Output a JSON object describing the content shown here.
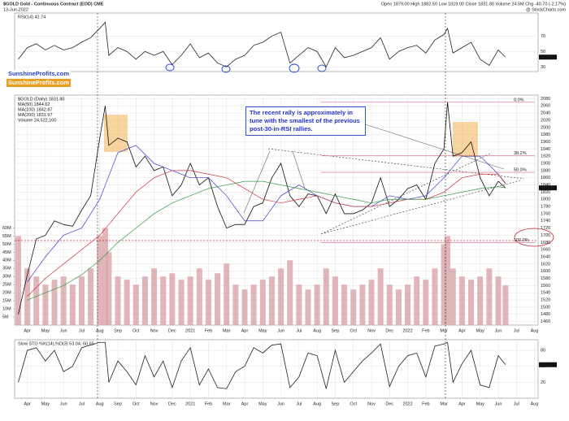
{
  "watermark": [
    "SunshineProfits.com",
    "SunshineProfits.com"
  ],
  "chart_data": [
    {
      "type": "line",
      "x": [
        -0.5,
        0,
        0.5,
        1,
        1.5,
        2,
        2.5,
        3,
        3.5,
        4,
        4.3,
        4.5,
        5,
        5.5,
        6,
        6.5,
        7,
        7.5,
        8,
        8.5,
        9,
        9.5,
        10,
        10.5,
        11,
        11.5,
        12,
        12.5,
        13,
        13.5,
        14,
        14.5,
        15,
        15.5,
        16,
        16.5,
        17,
        17.5,
        18,
        18.5,
        19,
        19.5,
        20,
        20.5,
        21,
        21.5,
        22,
        22.5,
        23,
        23.2,
        23.5,
        24,
        24.5,
        25,
        25.5,
        26,
        26.4
      ],
      "series": [
        {
          "name": "RSI(14) 42.74",
          "color": "#222222",
          "values": [
            40,
            55,
            60,
            52,
            58,
            52,
            55,
            62,
            68,
            80,
            88,
            45,
            55,
            50,
            40,
            50,
            45,
            50,
            33,
            45,
            60,
            42,
            48,
            35,
            30,
            40,
            45,
            58,
            62,
            70,
            75,
            35,
            45,
            55,
            50,
            30,
            55,
            42,
            45,
            50,
            55,
            68,
            40,
            50,
            55,
            58,
            48,
            65,
            72,
            80,
            48,
            55,
            62,
            40,
            32,
            52,
            42.74
          ]
        }
      ],
      "xlim": [
        -0.7,
        28.2
      ],
      "ylim": [
        24,
        100
      ],
      "yticks": [
        30,
        50,
        70
      ],
      "grid": true
    },
    {
      "type": "line",
      "title": "$GOLD Gold - Continuous Contract (EOD) CME",
      "subtitle": "13-Jun-2022",
      "source": "@ StockCharts.com",
      "quote": "Open 1879.00  High 1882.50  Low 1819.00  Close 1831.80  Volume 24.5M  Chg -40.70 (-2.17%)",
      "annotation": "The recent rally is approximately in tune with the smallest of the previous post-30-in-RSI rallies.",
      "fib_levels": [
        {
          "value": 2070,
          "label": "0.0%"
        },
        {
          "value": 1921,
          "label": "38.2%"
        },
        {
          "value": 1875,
          "label": "50.0%"
        },
        {
          "value": 1680,
          "label": "100.0%"
        }
      ],
      "x": [
        -0.5,
        0,
        0.5,
        1,
        1.5,
        2,
        2.5,
        3,
        3.5,
        4,
        4.3,
        4.5,
        5,
        5.5,
        6,
        6.5,
        7,
        7.5,
        8,
        8.5,
        9,
        9.5,
        10,
        10.5,
        11,
        11.5,
        12,
        12.5,
        13,
        13.5,
        14,
        14.5,
        15,
        15.5,
        16,
        16.5,
        17,
        17.5,
        18,
        18.5,
        19,
        19.5,
        20,
        20.5,
        21,
        21.5,
        22,
        22.5,
        23,
        23.2,
        23.5,
        24,
        24.5,
        25,
        25.5,
        26,
        26.4
      ],
      "series": [
        {
          "name": "$GOLD (Daily) 1831.80",
          "color": "#111111",
          "values": [
            1480,
            1590,
            1690,
            1700,
            1740,
            1730,
            1725,
            1770,
            1810,
            1970,
            2060,
            1950,
            1970,
            1960,
            1890,
            1920,
            1880,
            1890,
            1810,
            1840,
            1900,
            1840,
            1860,
            1780,
            1720,
            1730,
            1730,
            1780,
            1790,
            1860,
            1900,
            1810,
            1780,
            1815,
            1810,
            1760,
            1815,
            1760,
            1760,
            1770,
            1790,
            1860,
            1780,
            1800,
            1830,
            1840,
            1800,
            1900,
            1940,
            2070,
            1920,
            1930,
            1960,
            1860,
            1810,
            1850,
            1831.8
          ]
        },
        {
          "name": "MA(50) 1844.62",
          "color": "#3a3acc",
          "x": [
            0,
            1,
            2,
            3,
            4,
            5,
            6,
            7,
            8,
            9,
            10,
            11,
            12,
            13,
            14,
            15,
            16,
            17,
            18,
            19,
            20,
            21,
            22,
            23,
            24,
            25,
            26,
            26.4
          ],
          "values": [
            1570,
            1640,
            1700,
            1720,
            1800,
            1930,
            1950,
            1900,
            1880,
            1860,
            1860,
            1810,
            1740,
            1740,
            1810,
            1840,
            1810,
            1790,
            1780,
            1780,
            1810,
            1800,
            1810,
            1860,
            1920,
            1920,
            1870,
            1844.62
          ]
        },
        {
          "name": "MA(100) 1842.87",
          "color": "#cc3344",
          "x": [
            0,
            1,
            2,
            3,
            4,
            5,
            6,
            7,
            8,
            9,
            10,
            11,
            12,
            13,
            14,
            15,
            16,
            17,
            18,
            19,
            20,
            21,
            22,
            23,
            24,
            25,
            26,
            26.4
          ],
          "values": [
            1530,
            1580,
            1620,
            1660,
            1700,
            1760,
            1820,
            1860,
            1880,
            1880,
            1870,
            1860,
            1830,
            1800,
            1790,
            1800,
            1810,
            1790,
            1780,
            1780,
            1790,
            1800,
            1800,
            1820,
            1860,
            1870,
            1870,
            1842.87
          ]
        },
        {
          "name": "MA(200) 1831.97",
          "color": "#339944",
          "x": [
            0,
            1,
            2,
            3,
            4,
            5,
            6,
            7,
            8,
            9,
            10,
            11,
            12,
            13,
            14,
            15,
            16,
            17,
            18,
            19,
            20,
            21,
            22,
            23,
            24,
            25,
            26,
            26.4
          ],
          "values": [
            1520,
            1540,
            1560,
            1590,
            1630,
            1680,
            1720,
            1760,
            1790,
            1810,
            1830,
            1840,
            1850,
            1850,
            1840,
            1830,
            1820,
            1810,
            1800,
            1790,
            1800,
            1800,
            1800,
            1810,
            1820,
            1830,
            1835,
            1831.97
          ]
        },
        {
          "name": "Volume 24,522,100",
          "color": "#d8a4a8",
          "axis": "y2",
          "values": [
            55000000,
            35000000,
            30000000,
            25000000,
            28000000,
            30000000,
            25000000,
            30000000,
            35000000,
            55000000,
            60000000,
            45000000,
            30000000,
            28000000,
            25000000,
            30000000,
            35000000,
            30000000,
            32000000,
            28000000,
            30000000,
            35000000,
            28000000,
            32000000,
            38000000,
            25000000,
            22000000,
            25000000,
            28000000,
            30000000,
            35000000,
            40000000,
            25000000,
            22000000,
            25000000,
            35000000,
            30000000,
            25000000,
            22000000,
            25000000,
            28000000,
            35000000,
            25000000,
            22000000,
            25000000,
            30000000,
            28000000,
            35000000,
            50000000,
            55000000,
            35000000,
            30000000,
            28000000,
            30000000,
            35000000,
            30000000,
            24522100
          ]
        }
      ],
      "xlim": [
        -0.7,
        28.2
      ],
      "ylim": [
        1450,
        2090
      ],
      "yticks": [
        1460,
        1480,
        1500,
        1520,
        1540,
        1560,
        1580,
        1600,
        1620,
        1640,
        1660,
        1680,
        1700,
        1720,
        1740,
        1760,
        1780,
        1800,
        1820,
        1840,
        1860,
        1880,
        1900,
        1920,
        1940,
        1960,
        1980,
        2000,
        2020,
        2040,
        2060,
        2080
      ],
      "y2lim": [
        0,
        142000000
      ],
      "y2ticks": [
        {
          "value": 5000000,
          "label": "5M"
        },
        {
          "value": 10000000,
          "label": "10M"
        },
        {
          "value": 15000000,
          "label": "15M"
        },
        {
          "value": 20000000,
          "label": "20M"
        },
        {
          "value": 25000000,
          "label": "25M"
        },
        {
          "value": 30000000,
          "label": "30M"
        },
        {
          "value": 35000000,
          "label": "35M"
        },
        {
          "value": 40000000,
          "label": "40M"
        },
        {
          "value": 45000000,
          "label": "45M"
        },
        {
          "value": 50000000,
          "label": "50M"
        },
        {
          "value": 55000000,
          "label": "55M"
        },
        {
          "value": 60000000,
          "label": "60M"
        }
      ],
      "xticks": [
        {
          "value": 0,
          "label": "Apr"
        },
        {
          "value": 1,
          "label": "May"
        },
        {
          "value": 2,
          "label": "Jun"
        },
        {
          "value": 3,
          "label": "Jul"
        },
        {
          "value": 4,
          "label": "Aug"
        },
        {
          "value": 5,
          "label": "Sep"
        },
        {
          "value": 6,
          "label": "Oct"
        },
        {
          "value": 7,
          "label": "Nov"
        },
        {
          "value": 8,
          "label": "Dec"
        },
        {
          "value": 9,
          "label": "2021"
        },
        {
          "value": 10,
          "label": "Feb"
        },
        {
          "value": 11,
          "label": "Mar"
        },
        {
          "value": 12,
          "label": "Apr"
        },
        {
          "value": 13,
          "label": "May"
        },
        {
          "value": 14,
          "label": "Jun"
        },
        {
          "value": 15,
          "label": "Jul"
        },
        {
          "value": 16,
          "label": "Aug"
        },
        {
          "value": 17,
          "label": "Sep"
        },
        {
          "value": 18,
          "label": "Oct"
        },
        {
          "value": 19,
          "label": "Nov"
        },
        {
          "value": 20,
          "label": "Dec"
        },
        {
          "value": 21,
          "label": "2022"
        },
        {
          "value": 22,
          "label": "Feb"
        },
        {
          "value": 23,
          "label": "Mar"
        },
        {
          "value": 24,
          "label": "Apr"
        },
        {
          "value": 25,
          "label": "May"
        },
        {
          "value": 26,
          "label": "Jun"
        },
        {
          "value": 27,
          "label": "Jul"
        },
        {
          "value": 28,
          "label": "Aug"
        }
      ],
      "grid": true
    },
    {
      "type": "line",
      "x": [
        -0.5,
        0,
        0.5,
        1,
        1.5,
        2,
        2.5,
        3,
        3.5,
        4,
        4.3,
        4.5,
        5,
        5.5,
        6,
        6.5,
        7,
        7.5,
        8,
        8.5,
        9,
        9.5,
        10,
        10.5,
        11,
        11.5,
        12,
        12.5,
        13,
        13.5,
        14,
        14.5,
        15,
        15.5,
        16,
        16.5,
        17,
        17.5,
        18,
        18.5,
        19,
        19.5,
        20,
        20.5,
        21,
        21.5,
        22,
        22.5,
        23,
        23.2,
        23.5,
        24,
        24.5,
        25,
        25.5,
        26,
        26.4
      ],
      "series": [
        {
          "name": "Slow STO %K(14),%D(3) 53.04, 60.65",
          "color": "#222222",
          "values": [
            20,
            80,
            85,
            60,
            80,
            40,
            50,
            85,
            90,
            95,
            95,
            20,
            60,
            40,
            15,
            70,
            30,
            60,
            10,
            60,
            85,
            15,
            45,
            10,
            8,
            40,
            50,
            85,
            75,
            90,
            92,
            10,
            30,
            75,
            70,
            8,
            80,
            20,
            40,
            60,
            75,
            92,
            12,
            50,
            70,
            75,
            30,
            88,
            92,
            95,
            20,
            55,
            80,
            15,
            10,
            70,
            53.04
          ]
        }
      ],
      "xlim": [
        -0.7,
        28.2
      ],
      "ylim": [
        -10,
        100
      ],
      "yticks": [
        20,
        50,
        80
      ],
      "xticks": [
        {
          "value": 0,
          "label": "Apr"
        },
        {
          "value": 1,
          "label": "May"
        },
        {
          "value": 2,
          "label": "Jun"
        },
        {
          "value": 3,
          "label": "Jul"
        },
        {
          "value": 4,
          "label": "Aug"
        },
        {
          "value": 5,
          "label": "Sep"
        },
        {
          "value": 6,
          "label": "Oct"
        },
        {
          "value": 7,
          "label": "Nov"
        },
        {
          "value": 8,
          "label": "Dec"
        },
        {
          "value": 9,
          "label": "2021"
        },
        {
          "value": 10,
          "label": "Feb"
        },
        {
          "value": 11,
          "label": "Mar"
        },
        {
          "value": 12,
          "label": "Apr"
        },
        {
          "value": 13,
          "label": "May"
        },
        {
          "value": 14,
          "label": "Jun"
        },
        {
          "value": 15,
          "label": "Jul"
        },
        {
          "value": 16,
          "label": "Aug"
        },
        {
          "value": 17,
          "label": "Sep"
        },
        {
          "value": 18,
          "label": "Oct"
        },
        {
          "value": 19,
          "label": "Nov"
        },
        {
          "value": 20,
          "label": "Dec"
        },
        {
          "value": 21,
          "label": "2022"
        },
        {
          "value": 22,
          "label": "Feb"
        },
        {
          "value": 23,
          "label": "Mar"
        },
        {
          "value": 24,
          "label": "Apr"
        },
        {
          "value": 25,
          "label": "May"
        },
        {
          "value": 26,
          "label": "Jun"
        },
        {
          "value": 27,
          "label": "Jul"
        },
        {
          "value": 28,
          "label": "Aug"
        }
      ],
      "grid": true
    }
  ]
}
